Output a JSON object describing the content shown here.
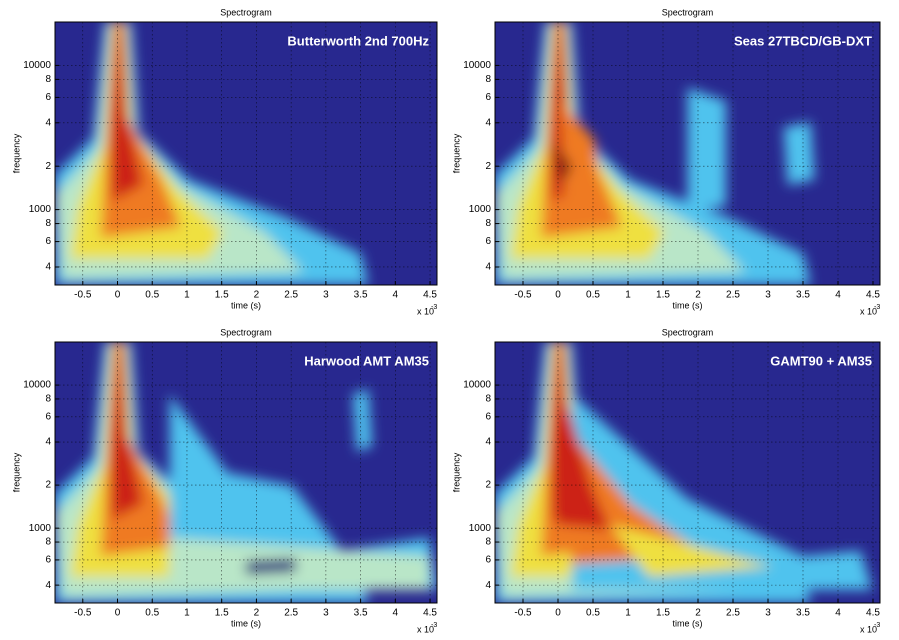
{
  "chart_data": [
    {
      "type": "heatmap",
      "title": "Spectrogram",
      "annotation": "Butterworth 2nd 700Hz",
      "xlabel": "time (s)",
      "ylabel": "frequency",
      "x_offset_label": {
        "base": "x 10",
        "exponent": "-3"
      },
      "xlim": [
        -0.9,
        4.6
      ],
      "xticks": [
        -0.5,
        0,
        0.5,
        1,
        1.5,
        2,
        2.5,
        3,
        3.5,
        4,
        4.5
      ],
      "ylim": [
        300,
        20000
      ],
      "ylog": true,
      "grid": true,
      "yticks": [
        {
          "value": 400,
          "label": "4"
        },
        {
          "value": 600,
          "label": "6"
        },
        {
          "value": 800,
          "label": "8"
        },
        1000,
        {
          "value": 2000,
          "label": "2"
        },
        {
          "value": 4000,
          "label": "4"
        },
        {
          "value": 6000,
          "label": "6"
        },
        {
          "value": 8000,
          "label": "8"
        },
        10000
      ]
    },
    {
      "type": "heatmap",
      "title": "Spectrogram",
      "annotation": "Seas 27TBCD/GB-DXT",
      "xlabel": "time (s)",
      "ylabel": "frequency",
      "x_offset_label": {
        "base": "x 10",
        "exponent": "-3"
      },
      "xlim": [
        -0.9,
        4.6
      ],
      "xticks": [
        -0.5,
        0,
        0.5,
        1,
        1.5,
        2,
        2.5,
        3,
        3.5,
        4,
        4.5
      ],
      "ylim": [
        300,
        20000
      ],
      "ylog": true,
      "grid": true,
      "yticks": [
        {
          "value": 400,
          "label": "4"
        },
        {
          "value": 600,
          "label": "6"
        },
        {
          "value": 800,
          "label": "8"
        },
        1000,
        {
          "value": 2000,
          "label": "2"
        },
        {
          "value": 4000,
          "label": "4"
        },
        {
          "value": 6000,
          "label": "6"
        },
        {
          "value": 8000,
          "label": "8"
        },
        10000
      ]
    },
    {
      "type": "heatmap",
      "title": "Spectrogram",
      "annotation": "Harwood AMT AM35",
      "xlabel": "time (s)",
      "ylabel": "frequency",
      "x_offset_label": {
        "base": "x 10",
        "exponent": "-3"
      },
      "xlim": [
        -0.9,
        4.6
      ],
      "xticks": [
        -0.5,
        0,
        0.5,
        1,
        1.5,
        2,
        2.5,
        3,
        3.5,
        4,
        4.5
      ],
      "ylim": [
        300,
        20000
      ],
      "ylog": true,
      "grid": true,
      "yticks": [
        {
          "value": 400,
          "label": "4"
        },
        {
          "value": 600,
          "label": "6"
        },
        {
          "value": 800,
          "label": "8"
        },
        1000,
        {
          "value": 2000,
          "label": "2"
        },
        {
          "value": 4000,
          "label": "4"
        },
        {
          "value": 6000,
          "label": "6"
        },
        {
          "value": 8000,
          "label": "8"
        },
        10000
      ]
    },
    {
      "type": "heatmap",
      "title": "Spectrogram",
      "annotation": "GAMT90 + AM35",
      "xlabel": "time (s)",
      "ylabel": "frequency",
      "x_offset_label": {
        "base": "x 10",
        "exponent": "-3"
      },
      "xlim": [
        -0.9,
        4.6
      ],
      "xticks": [
        -0.5,
        0,
        0.5,
        1,
        1.5,
        2,
        2.5,
        3,
        3.5,
        4,
        4.5
      ],
      "ylim": [
        300,
        20000
      ],
      "ylog": true,
      "grid": true,
      "yticks": [
        {
          "value": 400,
          "label": "4"
        },
        {
          "value": 600,
          "label": "6"
        },
        {
          "value": 800,
          "label": "8"
        },
        1000,
        {
          "value": 2000,
          "label": "2"
        },
        {
          "value": 4000,
          "label": "4"
        },
        {
          "value": 6000,
          "label": "6"
        },
        {
          "value": 8000,
          "label": "8"
        },
        10000
      ]
    }
  ]
}
